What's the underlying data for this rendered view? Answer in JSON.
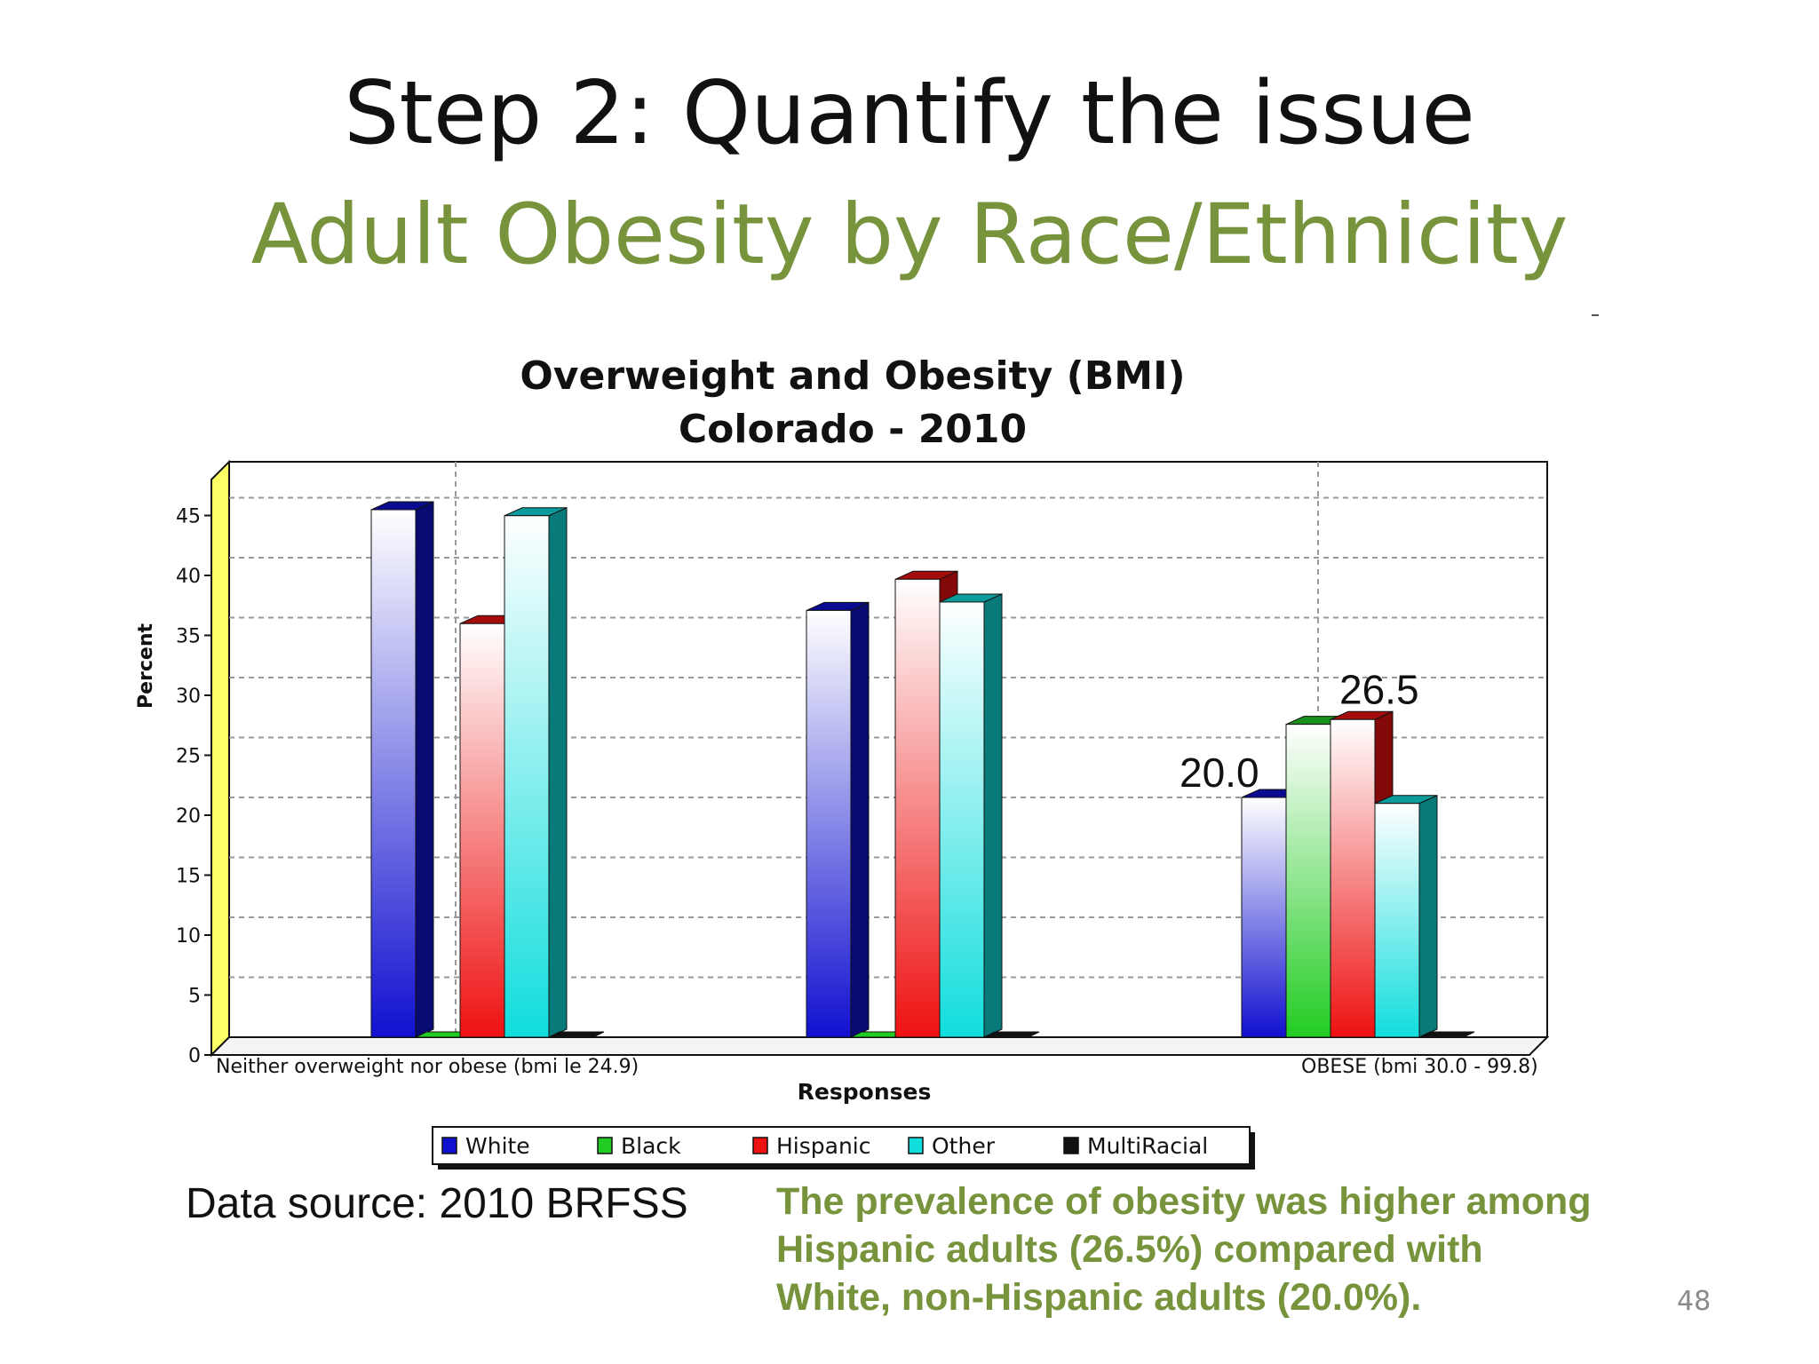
{
  "slide": {
    "title": "Step 2: Quantify the issue",
    "subtitle": "Adult Obesity by Race/Ethnicity",
    "data_source": "Data source: 2010 BRFSS",
    "callout": [
      "The prevalence of obesity was higher among",
      "Hispanic adults (26.5%) compared with",
      "White, non-Hispanic adults (20.0%)."
    ],
    "page_number": "48"
  },
  "colors": {
    "title": "#111111",
    "subtitle": "#77933c",
    "callout": "#77933c"
  },
  "chart_data": {
    "type": "bar",
    "title": "Overweight and Obesity (BMI)",
    "subtitle": "Colorado - 2010",
    "xlabel": "Responses",
    "ylabel": "Percent",
    "ylim": [
      0,
      48
    ],
    "yticks": [
      0,
      5,
      10,
      15,
      20,
      25,
      30,
      35,
      40,
      45
    ],
    "grid": true,
    "legend_position": "bottom",
    "categories": [
      "Neither overweight nor obese (bmi le 24.9)",
      "",
      "OBESE (bmi 30.0 - 99.8)"
    ],
    "category_labels_shown": [
      "Neither overweight nor obese (bmi le 24.9)",
      "OBESE (bmi 30.0 - 99.8)"
    ],
    "series": [
      {
        "name": "White",
        "values": [
          44.0,
          35.6,
          20.0
        ],
        "color": "#1010d0"
      },
      {
        "name": "Black",
        "values": [
          0,
          0,
          26.1
        ],
        "color": "#22cc22"
      },
      {
        "name": "Hispanic",
        "values": [
          34.5,
          38.2,
          26.5
        ],
        "color": "#ee1111"
      },
      {
        "name": "Other",
        "values": [
          43.5,
          36.3,
          19.5
        ],
        "color": "#11dddd"
      },
      {
        "name": "MultiRacial",
        "values": [
          0,
          0,
          0
        ],
        "color": "#111111"
      }
    ],
    "annotations": [
      {
        "text": "20.0",
        "series": "White",
        "category_index": 2
      },
      {
        "text": "26.5",
        "series": "Hispanic",
        "category_index": 2
      }
    ]
  }
}
